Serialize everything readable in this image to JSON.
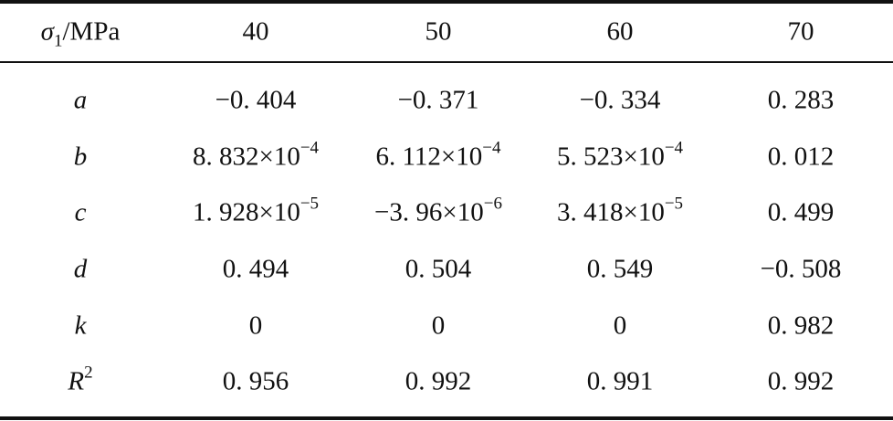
{
  "table": {
    "header": [
      {
        "text": "σ",
        "sub": "1",
        "tail": "/MPa"
      },
      "40",
      "50",
      "60",
      "70"
    ],
    "rows": [
      [
        {
          "text": "a"
        },
        "−0. 404",
        "−0. 371",
        "−0. 334",
        "0. 283"
      ],
      [
        {
          "text": "b"
        },
        {
          "text": "8. 832×10",
          "sup": "−4"
        },
        {
          "text": "6. 112×10",
          "sup": "−4"
        },
        {
          "text": "5. 523×10",
          "sup": "−4"
        },
        "0. 012"
      ],
      [
        {
          "text": "c"
        },
        {
          "text": "1. 928×10",
          "sup": "−5"
        },
        {
          "text": "−3. 96×10",
          "sup": "−6"
        },
        {
          "text": "3. 418×10",
          "sup": "−5"
        },
        "0. 499"
      ],
      [
        {
          "text": "d"
        },
        "0. 494",
        "0. 504",
        "0. 549",
        "−0. 508"
      ],
      [
        {
          "text": "k"
        },
        "0",
        "0",
        "0",
        "0. 982"
      ],
      [
        {
          "text": "R",
          "sup": "2"
        },
        "0. 956",
        "0. 992",
        "0. 991",
        "0. 992"
      ]
    ]
  }
}
